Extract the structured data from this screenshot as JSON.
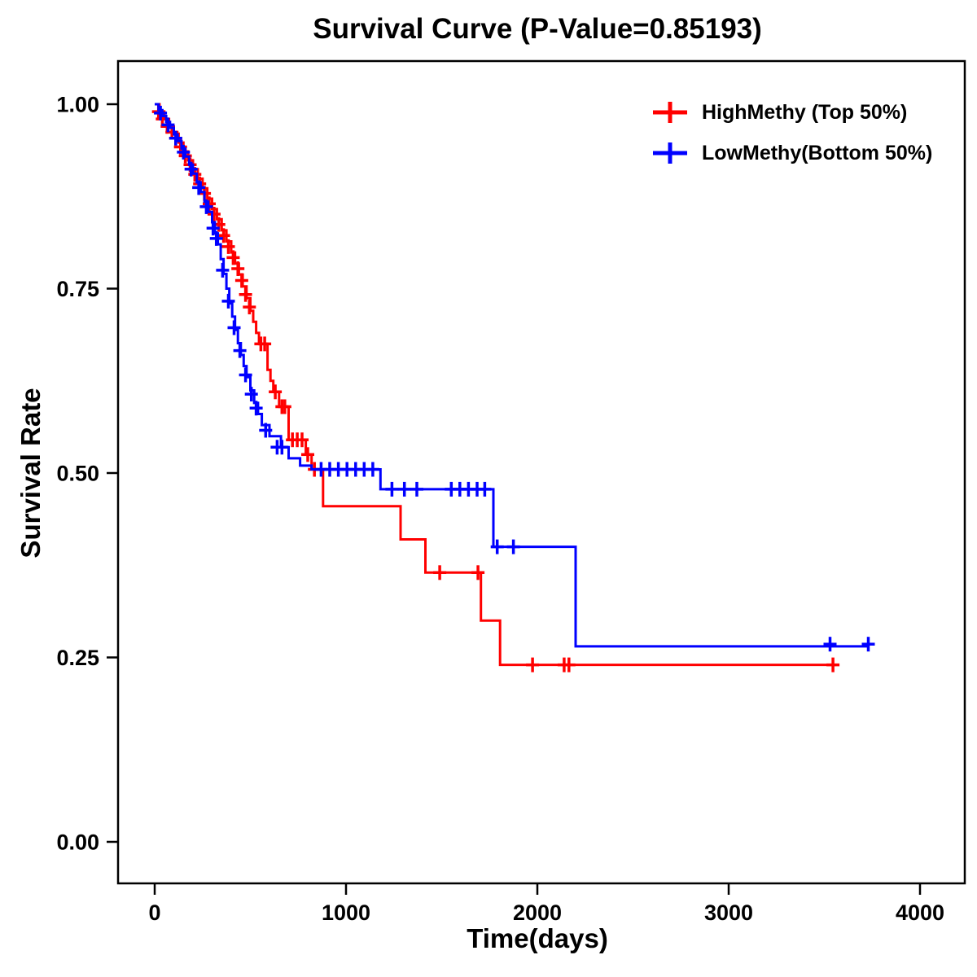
{
  "page": {
    "background": "#FFFFFF"
  },
  "chart_data": {
    "type": "line",
    "subtype": "kaplan-meier-step-survival",
    "title": "Survival Curve (P-Value=0.85193)",
    "p_value": "0.85193",
    "xlabel": "Time(days)",
    "ylabel": "Survival Rate",
    "xlim": [
      0,
      4000
    ],
    "ylim": [
      0,
      1
    ],
    "x_ticks": [
      0,
      1000,
      2000,
      3000,
      4000
    ],
    "x_tick_labels": [
      "0",
      "1000",
      "2000",
      "3000",
      "4000"
    ],
    "y_ticks": [
      0,
      0.25,
      0.5,
      0.75,
      1
    ],
    "y_tick_labels": [
      "0.00",
      "0.25",
      "0.50",
      "0.75",
      "1.00"
    ],
    "grid": false,
    "legend_position": "top-right",
    "frame_color": "#000000",
    "series": [
      {
        "id": "highmethy",
        "name": "HighMethy (Top 50%)",
        "color": "#FF0000",
        "end_time": 3560,
        "points": [
          [
            0,
            1.0
          ],
          [
            25,
            0.99
          ],
          [
            50,
            0.98
          ],
          [
            75,
            0.97
          ],
          [
            100,
            0.96
          ],
          [
            125,
            0.948
          ],
          [
            150,
            0.936
          ],
          [
            175,
            0.924
          ],
          [
            200,
            0.912
          ],
          [
            225,
            0.899
          ],
          [
            250,
            0.886
          ],
          [
            275,
            0.872
          ],
          [
            300,
            0.858
          ],
          [
            325,
            0.844
          ],
          [
            350,
            0.829
          ],
          [
            375,
            0.814
          ],
          [
            400,
            0.799
          ],
          [
            420,
            0.784
          ],
          [
            440,
            0.769
          ],
          [
            460,
            0.753
          ],
          [
            480,
            0.737
          ],
          [
            500,
            0.72
          ],
          [
            515,
            0.705
          ],
          [
            530,
            0.69
          ],
          [
            545,
            0.675
          ],
          [
            590,
            0.64
          ],
          [
            605,
            0.625
          ],
          [
            620,
            0.61
          ],
          [
            650,
            0.59
          ],
          [
            700,
            0.545
          ],
          [
            790,
            0.525
          ],
          [
            820,
            0.505
          ],
          [
            880,
            0.455
          ],
          [
            1285,
            0.41
          ],
          [
            1415,
            0.365
          ],
          [
            1705,
            0.3
          ],
          [
            1805,
            0.24
          ]
        ],
        "censors": [
          [
            20,
            0.99
          ],
          [
            40,
            0.98
          ],
          [
            65,
            0.97
          ],
          [
            90,
            0.962
          ],
          [
            110,
            0.954
          ],
          [
            135,
            0.942
          ],
          [
            160,
            0.93
          ],
          [
            185,
            0.918
          ],
          [
            210,
            0.905
          ],
          [
            235,
            0.892
          ],
          [
            260,
            0.879
          ],
          [
            285,
            0.865
          ],
          [
            310,
            0.851
          ],
          [
            335,
            0.837
          ],
          [
            360,
            0.822
          ],
          [
            385,
            0.807
          ],
          [
            410,
            0.792
          ],
          [
            435,
            0.777
          ],
          [
            455,
            0.761
          ],
          [
            475,
            0.742
          ],
          [
            495,
            0.725
          ],
          [
            555,
            0.675
          ],
          [
            575,
            0.675
          ],
          [
            630,
            0.61
          ],
          [
            665,
            0.59
          ],
          [
            680,
            0.59
          ],
          [
            720,
            0.545
          ],
          [
            745,
            0.545
          ],
          [
            770,
            0.545
          ],
          [
            800,
            0.525
          ],
          [
            835,
            0.505
          ],
          [
            1490,
            0.365
          ],
          [
            1690,
            0.365
          ],
          [
            1975,
            0.24
          ],
          [
            2140,
            0.24
          ],
          [
            2165,
            0.24
          ],
          [
            3545,
            0.24
          ]
        ]
      },
      {
        "id": "lowmethy",
        "name": "LowMethy(Bottom 50%)",
        "color": "#0000FF",
        "end_time": 3730,
        "points": [
          [
            0,
            1.0
          ],
          [
            20,
            0.992
          ],
          [
            40,
            0.984
          ],
          [
            60,
            0.976
          ],
          [
            80,
            0.968
          ],
          [
            100,
            0.959
          ],
          [
            120,
            0.95
          ],
          [
            140,
            0.94
          ],
          [
            160,
            0.929
          ],
          [
            180,
            0.918
          ],
          [
            200,
            0.906
          ],
          [
            220,
            0.894
          ],
          [
            240,
            0.881
          ],
          [
            260,
            0.868
          ],
          [
            280,
            0.854
          ],
          [
            300,
            0.84
          ],
          [
            315,
            0.825
          ],
          [
            330,
            0.81
          ],
          [
            345,
            0.79
          ],
          [
            360,
            0.77
          ],
          [
            375,
            0.75
          ],
          [
            390,
            0.73
          ],
          [
            405,
            0.712
          ],
          [
            420,
            0.694
          ],
          [
            435,
            0.676
          ],
          [
            450,
            0.66
          ],
          [
            465,
            0.645
          ],
          [
            480,
            0.63
          ],
          [
            500,
            0.612
          ],
          [
            520,
            0.595
          ],
          [
            540,
            0.58
          ],
          [
            560,
            0.565
          ],
          [
            600,
            0.55
          ],
          [
            660,
            0.535
          ],
          [
            700,
            0.52
          ],
          [
            760,
            0.51
          ],
          [
            820,
            0.505
          ],
          [
            1180,
            0.478
          ],
          [
            1770,
            0.4
          ],
          [
            2200,
            0.265
          ]
        ],
        "censors": [
          [
            30,
            0.988
          ],
          [
            70,
            0.972
          ],
          [
            110,
            0.954
          ],
          [
            150,
            0.935
          ],
          [
            190,
            0.912
          ],
          [
            230,
            0.887
          ],
          [
            270,
            0.861
          ],
          [
            305,
            0.832
          ],
          [
            322,
            0.818
          ],
          [
            355,
            0.775
          ],
          [
            385,
            0.733
          ],
          [
            415,
            0.697
          ],
          [
            445,
            0.666
          ],
          [
            475,
            0.633
          ],
          [
            505,
            0.607
          ],
          [
            530,
            0.588
          ],
          [
            580,
            0.558
          ],
          [
            640,
            0.535
          ],
          [
            665,
            0.535
          ],
          [
            870,
            0.505
          ],
          [
            915,
            0.505
          ],
          [
            960,
            0.505
          ],
          [
            1005,
            0.505
          ],
          [
            1050,
            0.505
          ],
          [
            1095,
            0.505
          ],
          [
            1140,
            0.505
          ],
          [
            1240,
            0.478
          ],
          [
            1305,
            0.478
          ],
          [
            1370,
            0.478
          ],
          [
            1550,
            0.478
          ],
          [
            1595,
            0.478
          ],
          [
            1640,
            0.478
          ],
          [
            1685,
            0.478
          ],
          [
            1725,
            0.478
          ],
          [
            1790,
            0.4
          ],
          [
            1875,
            0.4
          ],
          [
            3530,
            0.268
          ],
          [
            3730,
            0.268
          ]
        ]
      }
    ]
  }
}
